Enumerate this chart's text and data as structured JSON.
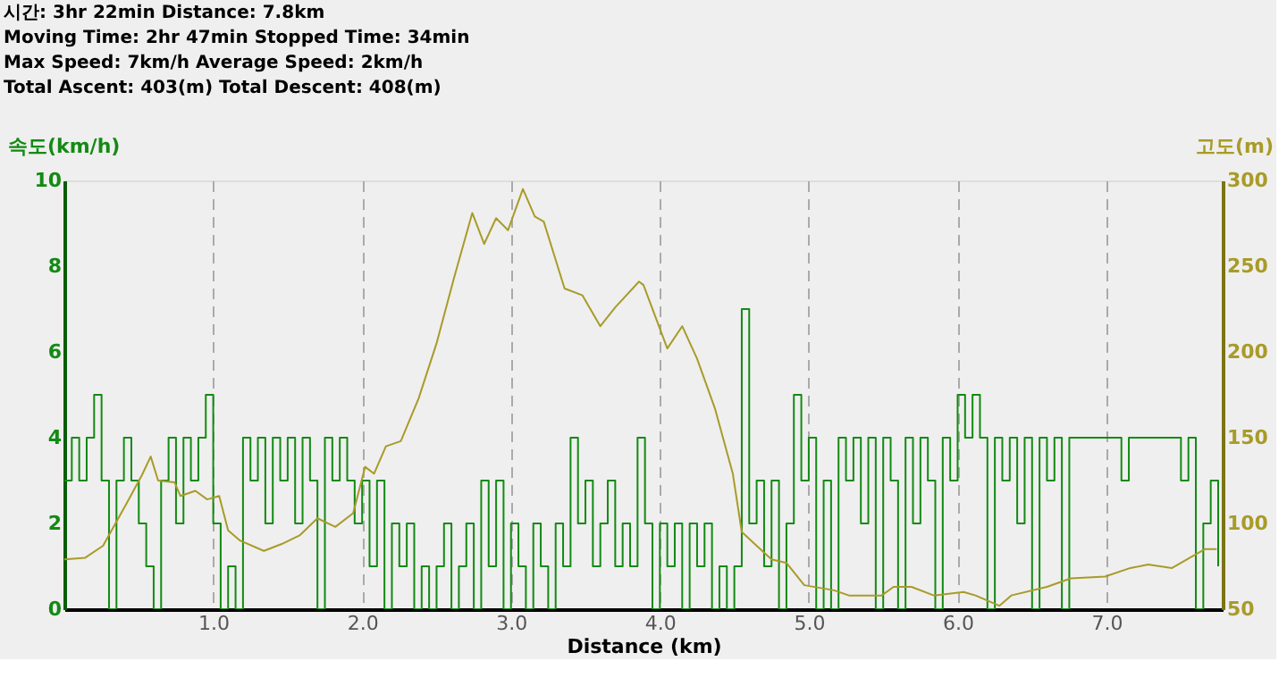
{
  "chart_data": {
    "type": "line",
    "annotations": [
      "시간: 3hr 22min   Distance: 7.8km",
      "Moving Time: 2hr 47min   Stopped Time: 34min",
      "Max Speed: 7km/h   Average Speed: 2km/h",
      "Total Ascent: 403(m)   Total Descent: 408(m)"
    ],
    "xlabel": "Distance (km)",
    "ylabel": "속도(km/h)",
    "y2label": "고도(m)",
    "xlim": [
      0,
      7.78
    ],
    "xticks": [
      {
        "value": 1,
        "label": "1.0"
      },
      {
        "value": 2,
        "label": "2.0"
      },
      {
        "value": 3,
        "label": "3.0"
      },
      {
        "value": 4,
        "label": "4.0"
      },
      {
        "value": 5,
        "label": "5.0"
      },
      {
        "value": 6,
        "label": "6.0"
      },
      {
        "value": 7,
        "label": "7.0"
      }
    ],
    "ylim": [
      0,
      10
    ],
    "yticks": [
      0,
      2,
      4,
      6,
      8,
      10
    ],
    "y2lim": [
      50,
      300
    ],
    "y2ticks": [
      50,
      100,
      150,
      200,
      250,
      300
    ],
    "grid": "x",
    "legend": false,
    "series": [
      {
        "type": "step",
        "color": "#138a13",
        "x": [
          0,
          0.05,
          0.1,
          0.15,
          0.2,
          0.25,
          0.3,
          0.35,
          0.4,
          0.45,
          0.5,
          0.55,
          0.6,
          0.65,
          0.7,
          0.75,
          0.8,
          0.85,
          0.9,
          0.95,
          1.0,
          1.05,
          1.1,
          1.15,
          1.2,
          1.25,
          1.3,
          1.35,
          1.4,
          1.45,
          1.5,
          1.55,
          1.6,
          1.65,
          1.7,
          1.75,
          1.8,
          1.85,
          1.9,
          1.95,
          2.0,
          2.05,
          2.1,
          2.15,
          2.2,
          2.25,
          2.3,
          2.35,
          2.4,
          2.45,
          2.5,
          2.55,
          2.6,
          2.65,
          2.7,
          2.75,
          2.8,
          2.85,
          2.9,
          2.95,
          3.0,
          3.05,
          3.1,
          3.15,
          3.2,
          3.25,
          3.3,
          3.35,
          3.4,
          3.45,
          3.5,
          3.55,
          3.6,
          3.65,
          3.7,
          3.75,
          3.8,
          3.85,
          3.9,
          3.95,
          4.0,
          4.05,
          4.1,
          4.15,
          4.2,
          4.25,
          4.3,
          4.35,
          4.4,
          4.45,
          4.5,
          4.55,
          4.6,
          4.65,
          4.7,
          4.75,
          4.8,
          4.85,
          4.9,
          4.95,
          5.0,
          5.05,
          5.1,
          5.15,
          5.2,
          5.25,
          5.3,
          5.35,
          5.4,
          5.45,
          5.5,
          5.55,
          5.6,
          5.65,
          5.7,
          5.75,
          5.8,
          5.85,
          5.9,
          5.95,
          6.0,
          6.05,
          6.1,
          6.15,
          6.2,
          6.25,
          6.3,
          6.35,
          6.4,
          6.45,
          6.5,
          6.55,
          6.6,
          6.65,
          6.7,
          6.75,
          6.8,
          6.9,
          7.0,
          7.1,
          7.15,
          7.3,
          7.45,
          7.5,
          7.55,
          7.6,
          7.65,
          7.7,
          7.75
        ],
        "values": [
          3,
          4,
          3,
          4,
          5,
          3,
          0,
          3,
          4,
          3,
          2,
          1,
          0,
          3,
          4,
          2,
          4,
          3,
          4,
          5,
          2,
          0,
          1,
          0,
          4,
          3,
          4,
          2,
          4,
          3,
          4,
          2,
          4,
          3,
          0,
          4,
          3,
          4,
          3,
          2,
          3,
          1,
          3,
          0,
          2,
          1,
          2,
          0,
          1,
          0,
          1,
          2,
          0,
          1,
          2,
          0,
          3,
          1,
          3,
          0,
          2,
          1,
          0,
          2,
          1,
          0,
          2,
          1,
          4,
          2,
          3,
          1,
          2,
          3,
          1,
          2,
          1,
          4,
          2,
          0,
          2,
          1,
          2,
          0,
          2,
          1,
          2,
          0,
          1,
          0,
          1,
          7,
          2,
          3,
          1,
          3,
          0,
          2,
          5,
          3,
          4,
          0,
          3,
          0,
          4,
          3,
          4,
          2,
          4,
          0,
          4,
          3,
          0,
          4,
          2,
          4,
          3,
          0,
          4,
          3,
          5,
          4,
          5,
          4,
          0,
          4,
          3,
          4,
          2,
          4,
          0,
          4,
          3,
          4,
          0,
          4,
          4,
          4,
          4,
          3,
          4,
          4,
          4,
          3,
          4,
          0,
          2,
          3,
          1
        ]
      },
      {
        "axis": "y2",
        "color": "#a89b28",
        "x": [
          0,
          0.14,
          0.26,
          0.42,
          0.52,
          0.58,
          0.63,
          0.74,
          0.78,
          0.88,
          0.96,
          1.04,
          1.1,
          1.18,
          1.34,
          1.46,
          1.58,
          1.7,
          1.82,
          1.94,
          2.02,
          2.08,
          2.16,
          2.26,
          2.38,
          2.5,
          2.62,
          2.74,
          2.82,
          2.9,
          2.98,
          3.08,
          3.16,
          3.22,
          3.36,
          3.48,
          3.6,
          3.7,
          3.86,
          3.89,
          4.05,
          4.15,
          4.25,
          4.37,
          4.49,
          4.55,
          4.65,
          4.75,
          4.85,
          4.97,
          5.17,
          5.27,
          5.49,
          5.57,
          5.69,
          5.84,
          6.04,
          6.12,
          6.28,
          6.36,
          6.6,
          6.76,
          6.99,
          7.16,
          7.28,
          7.44,
          7.56,
          7.66,
          7.74
        ],
        "values": [
          79,
          80,
          87,
          112,
          128,
          139,
          125,
          124,
          116,
          119,
          114,
          116,
          96,
          90,
          84,
          88,
          93,
          103,
          98,
          106,
          133,
          129,
          145,
          148,
          173,
          205,
          244,
          281,
          263,
          278,
          271,
          295,
          279,
          276,
          237,
          233,
          215,
          226,
          241,
          239,
          202,
          215,
          196,
          167,
          129,
          95,
          87,
          79,
          77,
          64,
          61,
          58,
          58,
          63,
          63,
          58,
          60,
          58,
          52,
          58,
          63,
          68,
          69,
          74,
          76,
          74,
          80,
          85,
          85
        ]
      }
    ]
  }
}
